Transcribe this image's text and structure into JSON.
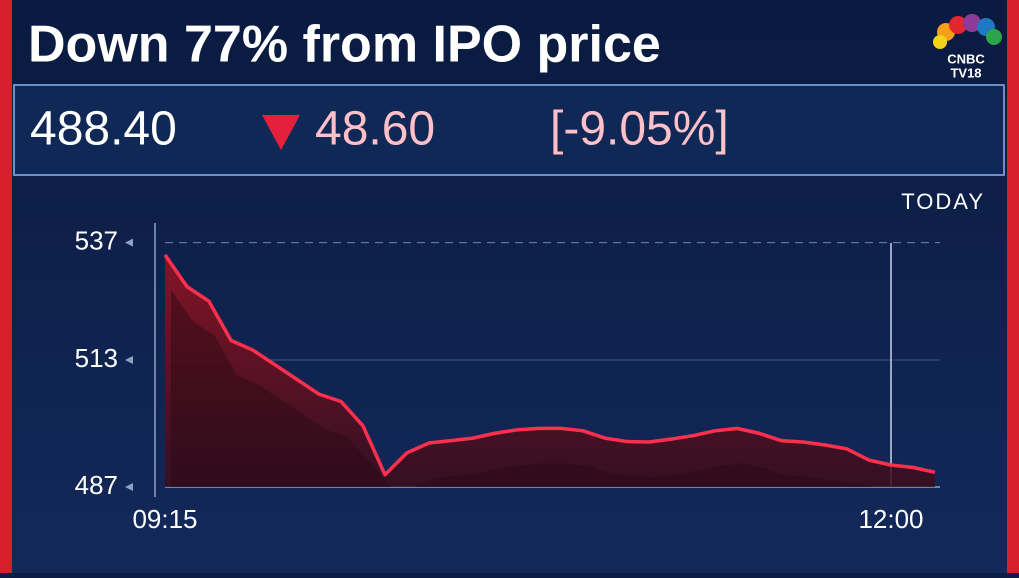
{
  "header": {
    "title": "Down 77% from IPO price",
    "logo": [
      "CNBC",
      "TV18"
    ]
  },
  "quote": {
    "price": "488.40",
    "change": "48.60",
    "percent": "[-9.05%]"
  },
  "chart_data": {
    "type": "line",
    "period_label": "TODAY",
    "categories": [
      "09:15",
      null,
      null,
      null,
      null,
      null,
      null,
      null,
      null,
      null,
      null,
      null,
      null,
      null,
      null,
      null,
      null,
      null,
      null,
      null,
      null,
      null,
      null,
      null,
      null,
      null,
      null,
      null,
      null,
      null,
      null,
      null,
      null,
      "12:00",
      null,
      null
    ],
    "values": [
      534.5,
      528,
      525,
      517,
      515,
      512,
      509,
      506,
      504.5,
      499.5,
      489.5,
      494,
      496,
      496.5,
      497,
      498,
      498.7,
      499,
      499,
      498.5,
      497,
      496.3,
      496.2,
      496.8,
      497.5,
      498.5,
      499,
      498,
      496.5,
      496.2,
      495.6,
      494.8,
      492.5,
      491.5,
      491,
      490
    ],
    "color": "#ff2f4e",
    "ylim": [
      487,
      540
    ],
    "yticks": [
      487,
      513,
      537
    ],
    "grid": true
  }
}
